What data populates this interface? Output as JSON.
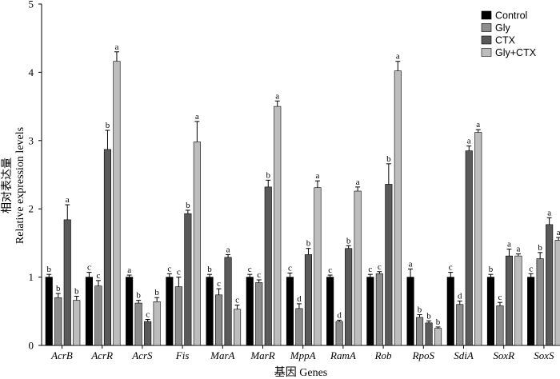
{
  "chart_data": {
    "type": "bar",
    "xlabel": "基因 Genes",
    "ylabel": [
      "相对表达量",
      "Relative expression levels"
    ],
    "ylim": [
      0,
      5
    ],
    "yticks": [
      "0",
      "1",
      "2",
      "3",
      "4",
      "5"
    ],
    "legend": {
      "placement": "top-right"
    },
    "categories": [
      "AcrB",
      "AcrR",
      "AcrS",
      "Fis",
      "MarA",
      "MarR",
      "MppA",
      "RamA",
      "Rob",
      "RpoS",
      "SdiA",
      "SoxR",
      "SoxS"
    ],
    "series": [
      {
        "name": "Control",
        "color": "#000000",
        "values": [
          1.0,
          1.0,
          1.0,
          1.0,
          1.0,
          1.0,
          1.0,
          1.0,
          1.0,
          1.0,
          1.0,
          1.0,
          1.0
        ],
        "errors": [
          0.04,
          0.07,
          0.03,
          0.05,
          0.04,
          0.04,
          0.06,
          0.03,
          0.04,
          0.12,
          0.07,
          0.04,
          0.05
        ],
        "significance": [
          "b",
          "c",
          "a",
          "c",
          "b",
          "c",
          "c",
          "c",
          "c",
          "a",
          "c",
          "b",
          "c"
        ]
      },
      {
        "name": "Gly",
        "color": "#8c8c8c",
        "values": [
          0.7,
          0.87,
          0.62,
          0.86,
          0.74,
          0.92,
          0.54,
          0.35,
          1.05,
          0.41,
          0.6,
          0.58,
          1.27
        ],
        "errors": [
          0.06,
          0.08,
          0.04,
          0.14,
          0.09,
          0.04,
          0.07,
          0.02,
          0.03,
          0.04,
          0.05,
          0.05,
          0.09
        ],
        "significance": [
          "b",
          "c",
          "b",
          "c",
          "c",
          "c",
          "d",
          "d",
          "c",
          "b",
          "d",
          "c",
          "b"
        ]
      },
      {
        "name": "CTX",
        "color": "#5a5a5a",
        "values": [
          1.84,
          2.87,
          0.35,
          1.93,
          1.29,
          2.32,
          1.33,
          1.42,
          2.36,
          0.33,
          2.85,
          1.31,
          1.77
        ],
        "errors": [
          0.22,
          0.28,
          0.03,
          0.05,
          0.04,
          0.1,
          0.09,
          0.04,
          0.3,
          0.03,
          0.07,
          0.1,
          0.1
        ],
        "significance": [
          "a",
          "b",
          "c",
          "b",
          "a",
          "b",
          "b",
          "b",
          "b",
          "b",
          "a",
          "a",
          "a"
        ]
      },
      {
        "name": "Gly+CTX",
        "color": "#bdbdbd",
        "values": [
          0.66,
          4.16,
          0.64,
          2.98,
          0.53,
          3.5,
          2.31,
          2.26,
          4.02,
          0.25,
          3.12,
          1.31,
          1.54
        ],
        "errors": [
          0.06,
          0.14,
          0.06,
          0.3,
          0.06,
          0.08,
          0.1,
          0.06,
          0.14,
          0.02,
          0.04,
          0.03,
          0.04
        ],
        "significance": [
          "b",
          "a",
          "b",
          "a",
          "c",
          "a",
          "a",
          "a",
          "a",
          "b",
          "a",
          "a",
          "a"
        ]
      }
    ]
  }
}
